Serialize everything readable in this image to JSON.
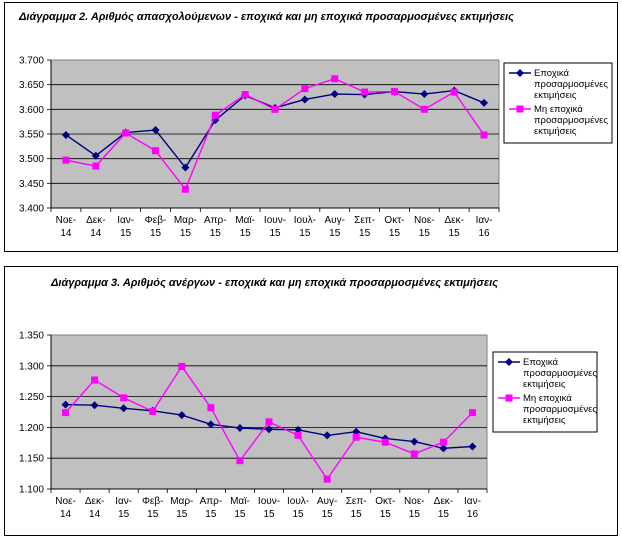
{
  "chart_data": [
    {
      "type": "line",
      "title": "Διάγραμμα 2. Αριθμός απασχολούμενων - εποχικά και μη εποχικά προσαρμοσμένες εκτιμήσεις",
      "categories": [
        "Νοε-14",
        "Δεκ-14",
        "Ιαν-15",
        "Φεβ-15",
        "Μαρ-15",
        "Απρ-15",
        "Μαϊ-15",
        "Ιουν-15",
        "Ιουλ-15",
        "Αυγ-15",
        "Σεπ-15",
        "Οκτ-15",
        "Νοε-15",
        "Δεκ-15",
        "Ιαν-16"
      ],
      "ylim": [
        3400,
        3700
      ],
      "yticks": [
        3400,
        3450,
        3500,
        3550,
        3600,
        3650,
        3700
      ],
      "ytick_labels": [
        "3.400",
        "3.450",
        "3.500",
        "3.550",
        "3.600",
        "3.650",
        "3.700"
      ],
      "grid": true,
      "legend_position": "right",
      "series": [
        {
          "name": "Εποχικά προσαρμοσμένες εκτιμήσεις",
          "legend_lines": [
            "Εποχικά",
            "προσαρμοσμένες",
            "εκτιμήσεις"
          ],
          "color": "#000080",
          "marker": "diamond",
          "values": [
            3548,
            3506,
            3553,
            3558,
            3482,
            3578,
            3628,
            3603,
            3620,
            3631,
            3630,
            3636,
            3631,
            3638,
            3613
          ]
        },
        {
          "name": "Μη εποχικά προσαρμοσμένες εκτιμήσεις",
          "legend_lines": [
            "Μη εποχικά",
            "προσαρμοσμένες",
            "εκτιμήσεις"
          ],
          "color": "#ff00ff",
          "marker": "square",
          "values": [
            3497,
            3485,
            3552,
            3516,
            3438,
            3588,
            3630,
            3600,
            3642,
            3662,
            3635,
            3636,
            3600,
            3635,
            3548
          ]
        }
      ]
    },
    {
      "type": "line",
      "title": "Διάγραμμα 3. Αριθμός ανέργων - εποχικά και μη εποχικά προσαρμοσμένες εκτιμήσεις",
      "categories": [
        "Νοε-14",
        "Δεκ-14",
        "Ιαν-15",
        "Φεβ-15",
        "Μαρ-15",
        "Απρ-15",
        "Μαϊ-15",
        "Ιουν-15",
        "Ιουλ-15",
        "Αυγ-15",
        "Σεπ-15",
        "Οκτ-15",
        "Νοε-15",
        "Δεκ-15",
        "Ιαν-16"
      ],
      "ylim": [
        1100,
        1350
      ],
      "yticks": [
        1100,
        1150,
        1200,
        1250,
        1300,
        1350
      ],
      "ytick_labels": [
        "1.100",
        "1.150",
        "1.200",
        "1.250",
        "1.300",
        "1.350"
      ],
      "grid": true,
      "legend_position": "right",
      "series": [
        {
          "name": "Εποχικά προσαρμοσμένες εκτιμήσεις",
          "legend_lines": [
            "Εποχικά",
            "προσαρμοσμένες",
            "εκτιμήσεις"
          ],
          "color": "#000080",
          "marker": "diamond",
          "values": [
            1237,
            1236,
            1231,
            1227,
            1220,
            1205,
            1199,
            1197,
            1196,
            1187,
            1193,
            1182,
            1177,
            1166,
            1169
          ]
        },
        {
          "name": "Μη εποχικά προσαρμοσμένες εκτιμήσεις",
          "legend_lines": [
            "Μη εποχικά",
            "προσαρμοσμένες",
            "εκτιμήσεις"
          ],
          "color": "#ff00ff",
          "marker": "square",
          "values": [
            1224,
            1277,
            1248,
            1226,
            1299,
            1232,
            1146,
            1209,
            1187,
            1116,
            1184,
            1176,
            1157,
            1176,
            1224
          ]
        }
      ]
    }
  ]
}
